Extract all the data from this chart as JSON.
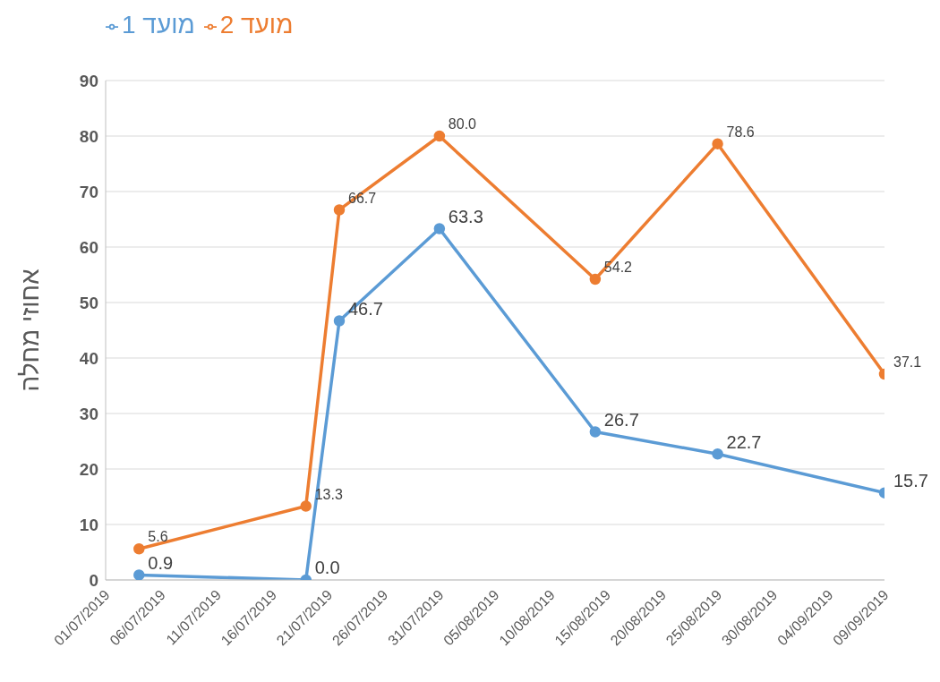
{
  "chart_data": {
    "type": "line",
    "ylabel": "אחוזי מחלה",
    "x": [
      "2019-07-04",
      "2019-07-19",
      "2019-07-22",
      "2019-07-31",
      "2019-08-14",
      "2019-08-25",
      "2019-09-09"
    ],
    "series": [
      {
        "name": "מועד 1",
        "color": "#5b9bd5",
        "values": [
          0.9,
          0,
          46.7,
          63.3,
          26.7,
          22.7,
          15.7
        ],
        "value_labels": [
          "0.9",
          "0.0",
          "46.7",
          "63.3",
          "26.7",
          "22.7",
          "15.7"
        ]
      },
      {
        "name": "מועד 2",
        "color": "#ed7d31",
        "values": [
          5.6,
          13.3,
          66.7,
          80,
          54.2,
          78.6,
          37.1
        ],
        "value_labels": [
          "5.6",
          "13.3",
          "66.7",
          "80.0",
          "54.2",
          "78.6",
          "37.1"
        ]
      }
    ],
    "xlim": [
      "2019-07-01",
      "2019-09-09"
    ],
    "xticks": [
      {
        "value": "2019-07-01",
        "label": "01/07/2019"
      },
      {
        "value": "2019-07-06",
        "label": "06/07/2019"
      },
      {
        "value": "2019-07-11",
        "label": "11/07/2019"
      },
      {
        "value": "2019-07-16",
        "label": "16/07/2019"
      },
      {
        "value": "2019-07-21",
        "label": "21/07/2019"
      },
      {
        "value": "2019-07-26",
        "label": "26/07/2019"
      },
      {
        "value": "2019-07-31",
        "label": "31/07/2019"
      },
      {
        "value": "2019-08-05",
        "label": "05/08/2019"
      },
      {
        "value": "2019-08-10",
        "label": "10/08/2019"
      },
      {
        "value": "2019-08-15",
        "label": "15/08/2019"
      },
      {
        "value": "2019-08-20",
        "label": "20/08/2019"
      },
      {
        "value": "2019-08-25",
        "label": "25/08/2019"
      },
      {
        "value": "2019-08-30",
        "label": "30/08/2019"
      },
      {
        "value": "2019-09-04",
        "label": "04/09/2019"
      },
      {
        "value": "2019-09-09",
        "label": "09/09/2019"
      }
    ],
    "ylim": [
      0,
      90
    ],
    "yticks": [
      0,
      10,
      20,
      30,
      40,
      50,
      60,
      70,
      80,
      90
    ],
    "grid": "y",
    "legend": "top left",
    "marker": "circle",
    "line_style": "solid"
  }
}
